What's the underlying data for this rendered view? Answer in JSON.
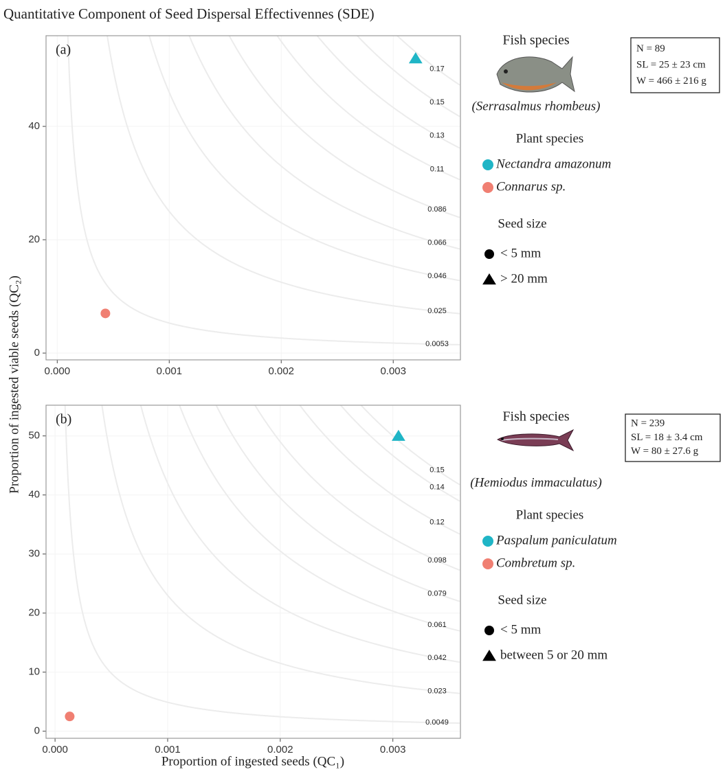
{
  "title": "Quantitative Component of Seed Dispersal Effectivennes (SDE)",
  "x_label": "Proportion of ingested seeds  (QC₁)",
  "y_label": "Proportion of ingested viable seeds  (QC₂)",
  "chart_data": [
    {
      "type": "scatter",
      "panel_label": "(a)",
      "xlim": [
        -0.0001,
        0.0036
      ],
      "ylim": [
        -1.2,
        56
      ],
      "xticks": [
        {
          "value": 0,
          "label": "0.000"
        },
        {
          "value": 0.001,
          "label": "0.001"
        },
        {
          "value": 0.002,
          "label": "0.002"
        },
        {
          "value": 0.003,
          "label": "0.003"
        }
      ],
      "yticks": [
        0,
        20,
        40
      ],
      "grid": true,
      "contour_levels": [
        0.0053,
        0.025,
        0.046,
        0.066,
        0.086,
        0.11,
        0.13,
        0.15,
        0.17
      ],
      "series": [
        {
          "name": "Nectandra amazonum",
          "color": "#1fb5c6",
          "marker": "triangle",
          "x": [
            0.0032
          ],
          "values": [
            52
          ]
        },
        {
          "name": "Connarus sp.",
          "color": "#f07f72",
          "marker": "circle",
          "x": [
            0.00043
          ],
          "values": [
            7
          ]
        }
      ],
      "fish_heading": "Fish species",
      "fish_species": "(Serrasalmus rhombeus)",
      "fish_stats": [
        "N = 89",
        "SL = 25 ± 23 cm",
        "W = 466 ± 216 g"
      ],
      "legend_title": "Plant species",
      "shape_legend_title": "Seed size",
      "shape_legend": [
        {
          "marker": "circle",
          "label": "< 5 mm"
        },
        {
          "marker": "triangle",
          "label": "> 20 mm"
        }
      ]
    },
    {
      "type": "scatter",
      "panel_label": "(b)",
      "xlim": [
        -8e-05,
        0.0036
      ],
      "ylim": [
        -1.2,
        55.2
      ],
      "xticks": [
        {
          "value": 0,
          "label": "0.000"
        },
        {
          "value": 0.001,
          "label": "0.001"
        },
        {
          "value": 0.002,
          "label": "0.002"
        },
        {
          "value": 0.003,
          "label": "0.003"
        }
      ],
      "yticks": [
        0,
        10,
        20,
        30,
        40,
        50
      ],
      "grid": true,
      "contour_levels": [
        0.0049,
        0.023,
        0.042,
        0.061,
        0.079,
        0.098,
        0.12,
        0.14,
        0.15
      ],
      "series": [
        {
          "name": "Paspalum paniculatum",
          "color": "#1fb5c6",
          "marker": "triangle",
          "x": [
            0.00305
          ],
          "values": [
            50
          ]
        },
        {
          "name": "Combretum sp.",
          "color": "#f07f72",
          "marker": "circle",
          "x": [
            0.00013
          ],
          "values": [
            2.5
          ]
        }
      ],
      "fish_heading": "Fish species",
      "fish_species": "(Hemiodus immaculatus)",
      "fish_stats": [
        "N = 239",
        "SL = 18 ± 3.4 cm",
        "W = 80 ± 27.6 g"
      ],
      "legend_title": "Plant species",
      "shape_legend_title": "Seed size",
      "shape_legend": [
        {
          "marker": "circle",
          "label": "< 5 mm"
        },
        {
          "marker": "triangle",
          "label": "between 5 or 20 mm"
        }
      ]
    }
  ]
}
